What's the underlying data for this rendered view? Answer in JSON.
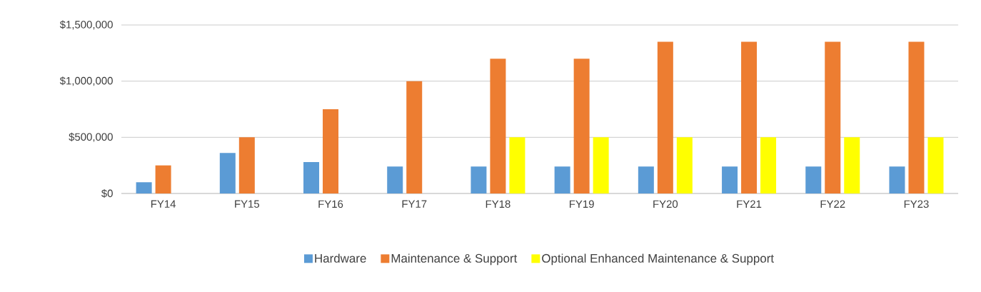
{
  "chart_data": {
    "type": "bar",
    "categories": [
      "FY14",
      "FY15",
      "FY16",
      "FY17",
      "FY18",
      "FY19",
      "FY20",
      "FY21",
      "FY22",
      "FY23"
    ],
    "series": [
      {
        "name": "Hardware",
        "color": "#5b9bd5",
        "values": [
          100000,
          360000,
          280000,
          240000,
          240000,
          240000,
          240000,
          240000,
          240000,
          240000
        ]
      },
      {
        "name": "Maintenance & Support",
        "color": "#ed7d31",
        "values": [
          250000,
          500000,
          750000,
          1000000,
          1200000,
          1200000,
          1350000,
          1350000,
          1350000,
          1350000
        ]
      },
      {
        "name": "Optional Enhanced Maintenance & Support",
        "color": "#ffff00",
        "values": [
          null,
          null,
          null,
          null,
          500000,
          500000,
          500000,
          500000,
          500000,
          500000
        ]
      }
    ],
    "ylim": [
      0,
      1500000
    ],
    "yticks": [
      {
        "value": 0,
        "label": "$0"
      },
      {
        "value": 500000,
        "label": "$500,000"
      },
      {
        "value": 1000000,
        "label": "$1,000,000"
      },
      {
        "value": 1500000,
        "label": "$1,500,000"
      }
    ],
    "grid": "y",
    "legend": "bottom"
  }
}
